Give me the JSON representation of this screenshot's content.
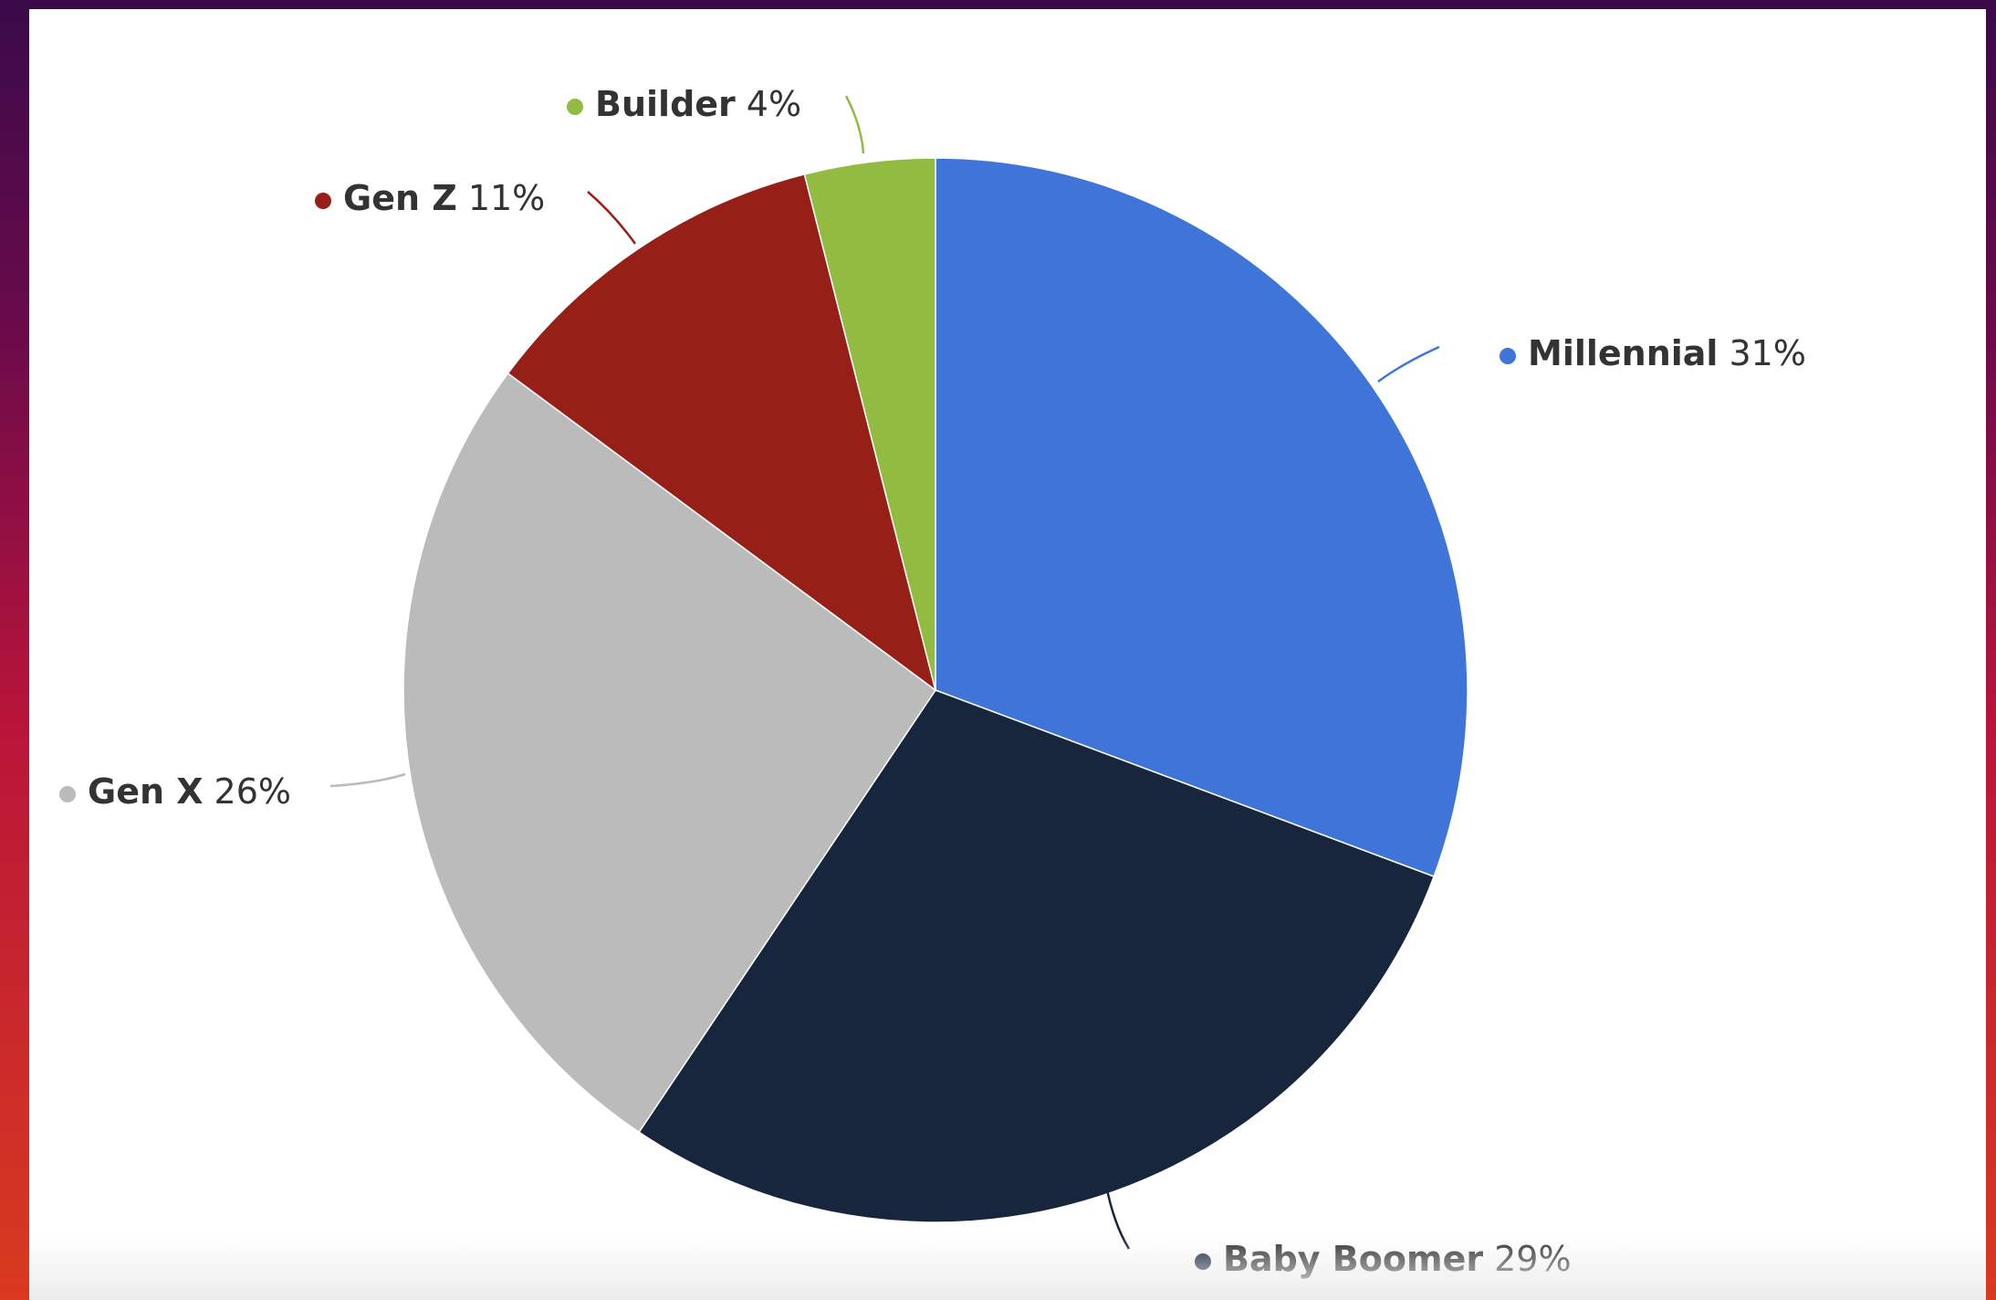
{
  "chart_data": {
    "type": "pie",
    "title": "",
    "start_angle_deg": 0,
    "direction": "clockwise",
    "slices": [
      {
        "name": "Millennial",
        "value": 31,
        "label": "Millennial",
        "value_label": "31%",
        "color": "#3f74d8"
      },
      {
        "name": "Baby Boomer",
        "value": 29,
        "label": "Baby Boomer",
        "value_label": "29%",
        "color": "#17253d"
      },
      {
        "name": "Gen X",
        "value": 26,
        "label": "Gen X",
        "value_label": "26%",
        "color": "#bbbbbb"
      },
      {
        "name": "Gen Z",
        "value": 11,
        "label": "Gen Z",
        "value_label": "11%",
        "color": "#962018"
      },
      {
        "name": "Builder",
        "value": 4,
        "label": "Builder",
        "value_label": "4%",
        "color": "#92bb42"
      }
    ]
  }
}
